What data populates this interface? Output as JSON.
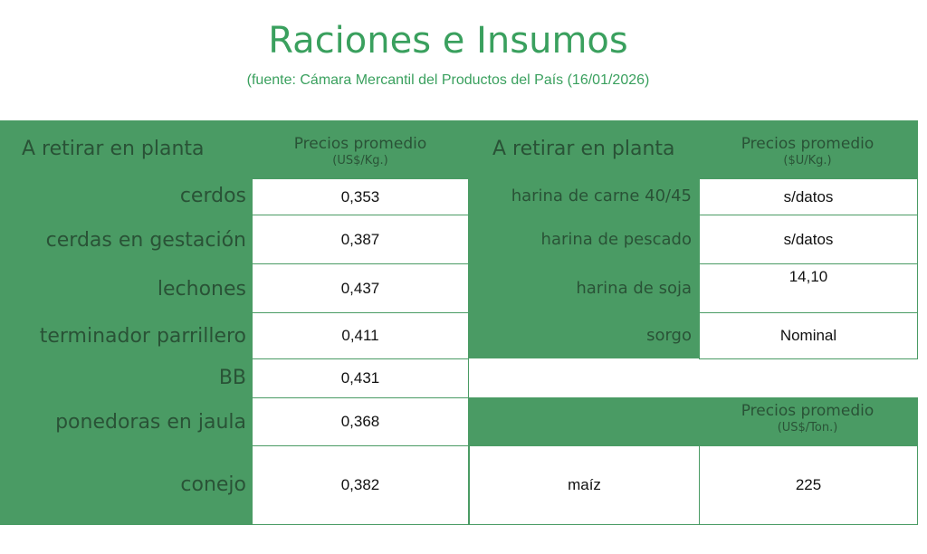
{
  "header": {
    "title": "Raciones e Insumos",
    "subtitle": "(fuente: Cámara Mercantil del Productos del País (16/01/2026)"
  },
  "left": {
    "heading": "A retirar en planta",
    "col_title": "Precios promedio",
    "col_unit": "(US$/Kg.)",
    "rows": [
      {
        "label": "cerdos",
        "value": "0,353"
      },
      {
        "label": "cerdas en gestación",
        "value": "0,387"
      },
      {
        "label": "lechones",
        "value": "0,437"
      },
      {
        "label": "terminador parrillero",
        "value": "0,411"
      },
      {
        "label": "BB",
        "value": "0,431"
      },
      {
        "label": "ponedoras en jaula",
        "value": "0,368"
      },
      {
        "label": "conejo",
        "value": "0,382"
      }
    ]
  },
  "right": {
    "heading": "A retirar en planta",
    "col_title": "Precios promedio",
    "col_unit": "($U/Kg.)",
    "rows": [
      {
        "label": "harina de carne 40/45",
        "value": "s/datos"
      },
      {
        "label": "harina de pescado",
        "value": "s/datos"
      },
      {
        "label": "harina de soja",
        "value": "14,10"
      },
      {
        "label": "sorgo",
        "value": "Nominal"
      }
    ]
  },
  "grain": {
    "col_title": "Precios promedio",
    "col_unit": "(US$/Ton.)",
    "label": "maíz",
    "value": "225"
  }
}
